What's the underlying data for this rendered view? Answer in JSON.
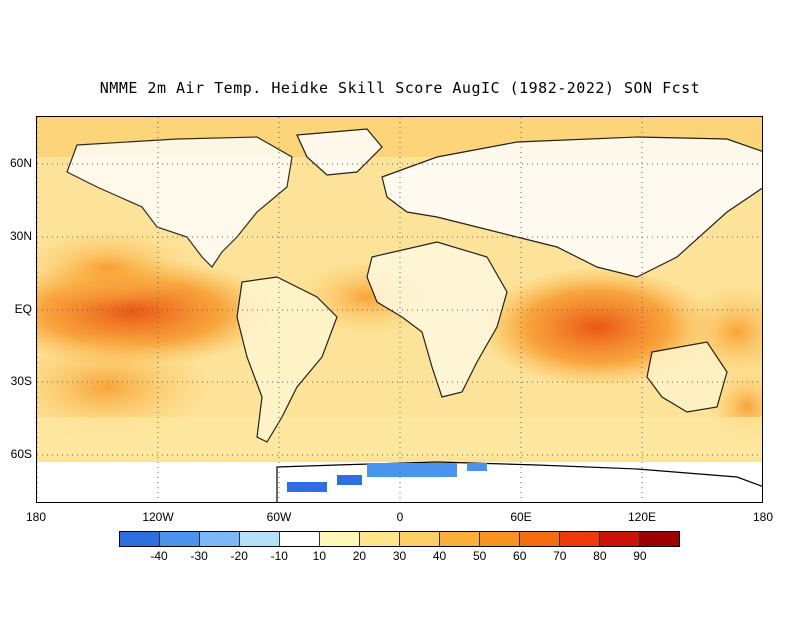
{
  "title": "NMME 2m Air Temp. Heidke Skill Score AugIC (1982-2022) SON Fcst",
  "map": {
    "lat_labels": [
      "60N",
      "30N",
      "EQ",
      "30S",
      "60S"
    ],
    "lon_labels": [
      "180",
      "120W",
      "60W",
      "0",
      "60E",
      "120E",
      "180"
    ],
    "gridlines": "dotted"
  },
  "colorbar": {
    "labels": [
      "-40",
      "-30",
      "-20",
      "-10",
      "10",
      "20",
      "30",
      "40",
      "50",
      "60",
      "70",
      "80",
      "90"
    ],
    "colors": [
      "#2d6fe0",
      "#4a94ee",
      "#7cb8f5",
      "#b4e1f8",
      "#ffffff",
      "#fff8b8",
      "#fde68a",
      "#fccf66",
      "#f9b13a",
      "#f79320",
      "#f56d12",
      "#f03a0c",
      "#cc1208",
      "#9c0000"
    ]
  }
}
